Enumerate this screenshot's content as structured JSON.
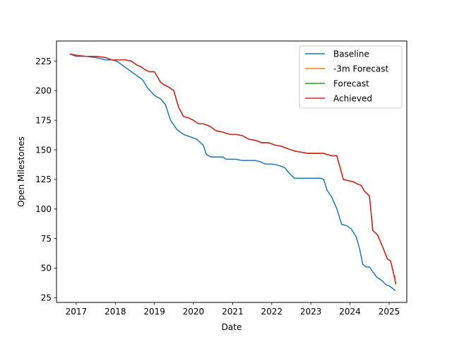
{
  "chart_data": {
    "type": "line",
    "title": "",
    "xlabel": "Date",
    "ylabel": "Open Milestones",
    "xlim": [
      "2016-07-01",
      "2025-06-15"
    ],
    "ylim": [
      21,
      242
    ],
    "x_ticks": [
      "2017",
      "2018",
      "2019",
      "2020",
      "2021",
      "2022",
      "2023",
      "2024",
      "2025"
    ],
    "y_ticks": [
      25,
      50,
      75,
      100,
      125,
      150,
      175,
      200,
      225
    ],
    "legend_position": "top-right",
    "grid": false,
    "series": [
      {
        "name": "Baseline",
        "color": "#1f77b4",
        "x": [
          "2016-11-01",
          "2017-01-01",
          "2017-04-01",
          "2017-07-01",
          "2017-10-01",
          "2017-12-01",
          "2018-01-15",
          "2018-03-01",
          "2018-05-01",
          "2018-07-01",
          "2018-09-15",
          "2018-11-01",
          "2019-01-01",
          "2019-03-01",
          "2019-04-15",
          "2019-06-01",
          "2019-08-01",
          "2019-10-01",
          "2019-12-01",
          "2020-02-01",
          "2020-04-01",
          "2020-05-01",
          "2020-06-15",
          "2020-08-01",
          "2020-10-01",
          "2020-11-01",
          "2020-12-15",
          "2021-02-01",
          "2021-04-01",
          "2021-06-01",
          "2021-08-01",
          "2021-09-15",
          "2021-11-01",
          "2022-01-01",
          "2022-03-01",
          "2022-05-01",
          "2022-06-15",
          "2022-08-01",
          "2022-10-01",
          "2022-12-01",
          "2023-02-01",
          "2023-04-01",
          "2023-05-01",
          "2023-06-01",
          "2023-07-15",
          "2023-09-01",
          "2023-10-15",
          "2023-12-01",
          "2024-01-15",
          "2024-03-01",
          "2024-04-01",
          "2024-05-01",
          "2024-06-01",
          "2024-07-01",
          "2024-08-01",
          "2024-09-01",
          "2024-10-01",
          "2024-11-01",
          "2024-12-01",
          "2025-01-01",
          "2025-02-01",
          "2025-03-01"
        ],
        "y": [
          231,
          229,
          229,
          228,
          226,
          226,
          225,
          222,
          218,
          214,
          209,
          202,
          196,
          193,
          188,
          175,
          167,
          163,
          161,
          159,
          154,
          146,
          144,
          144,
          144,
          142,
          142,
          142,
          141,
          141,
          141,
          140,
          138,
          138,
          137,
          135,
          130,
          126,
          126,
          126,
          126,
          126,
          125,
          116,
          110,
          100,
          87,
          86,
          83,
          76,
          66,
          53,
          51,
          51,
          47,
          43,
          41,
          39,
          36,
          35,
          33,
          31
        ],
        "values": [
          231,
          229,
          229,
          228,
          226,
          226,
          225,
          222,
          218,
          214,
          209,
          202,
          196,
          193,
          188,
          175,
          167,
          163,
          161,
          159,
          154,
          146,
          144,
          144,
          144,
          142,
          142,
          142,
          141,
          141,
          141,
          140,
          138,
          138,
          137,
          135,
          130,
          126,
          126,
          126,
          126,
          126,
          125,
          116,
          110,
          100,
          87,
          86,
          83,
          76,
          66,
          53,
          51,
          51,
          47,
          43,
          41,
          39,
          36,
          35,
          33,
          31
        ]
      },
      {
        "name": "-3m Forecast",
        "color": "#ff7f0e",
        "x": [
          "2016-11-01",
          "2017-01-01",
          "2017-04-01",
          "2017-07-01",
          "2017-10-01",
          "2017-12-01",
          "2018-01-01",
          "2018-02-15",
          "2018-04-01",
          "2018-06-01",
          "2018-07-15",
          "2018-09-01",
          "2018-10-01",
          "2018-11-15",
          "2019-01-01",
          "2019-03-01",
          "2019-04-01",
          "2019-05-15",
          "2019-07-01",
          "2019-08-15",
          "2019-10-01",
          "2019-11-15",
          "2020-01-01",
          "2020-02-15",
          "2020-04-01",
          "2020-06-01",
          "2020-08-01",
          "2020-10-01",
          "2020-11-01",
          "2020-12-15",
          "2021-02-01",
          "2021-04-01",
          "2021-06-01",
          "2021-08-01",
          "2021-10-01",
          "2021-12-01",
          "2022-02-01",
          "2022-04-01",
          "2022-06-01",
          "2022-08-01",
          "2022-10-01",
          "2022-12-01",
          "2023-02-01",
          "2023-04-01",
          "2023-05-01",
          "2023-06-01",
          "2023-07-15",
          "2023-09-01",
          "2023-11-01",
          "2023-12-15",
          "2024-02-01",
          "2024-03-15",
          "2024-04-15",
          "2024-05-15",
          "2024-07-01",
          "2024-08-01",
          "2024-09-15",
          "2024-11-01",
          "2024-12-15",
          "2025-01-15",
          "2025-02-15",
          "2025-03-05"
        ],
        "y": [
          231,
          230,
          229,
          229,
          228,
          226,
          226,
          226,
          226,
          225,
          222,
          220,
          218,
          216,
          216,
          207,
          205,
          203,
          200,
          186,
          178,
          177,
          175,
          172,
          172,
          170,
          166,
          165,
          164,
          163,
          163,
          162,
          159,
          158,
          156,
          156,
          154,
          153,
          151,
          149,
          148,
          147,
          147,
          147,
          147,
          146,
          145,
          145,
          125,
          124,
          123,
          121,
          120,
          115,
          111,
          82,
          78,
          68,
          58,
          56,
          44,
          42
        ]
      },
      {
        "name": "Forecast",
        "color": "#2ca02c",
        "x": [
          "2016-11-01",
          "2017-01-01",
          "2017-04-01",
          "2017-07-01",
          "2017-10-01",
          "2017-12-01",
          "2018-01-01",
          "2018-02-15",
          "2018-04-01",
          "2018-06-01",
          "2018-07-15",
          "2018-09-01",
          "2018-10-01",
          "2018-11-15",
          "2019-01-01",
          "2019-03-01",
          "2019-04-01",
          "2019-05-15",
          "2019-07-01",
          "2019-08-15",
          "2019-10-01",
          "2019-11-15",
          "2020-01-01",
          "2020-02-15",
          "2020-04-01",
          "2020-06-01",
          "2020-08-01",
          "2020-10-01",
          "2020-11-01",
          "2020-12-15",
          "2021-02-01",
          "2021-04-01",
          "2021-06-01",
          "2021-08-01",
          "2021-10-01",
          "2021-12-01",
          "2022-02-01",
          "2022-04-01",
          "2022-06-01",
          "2022-08-01",
          "2022-10-01",
          "2022-12-01",
          "2023-02-01",
          "2023-04-01",
          "2023-05-01",
          "2023-06-01",
          "2023-07-15",
          "2023-09-01",
          "2023-11-01",
          "2023-12-15",
          "2024-02-01",
          "2024-03-15",
          "2024-04-15",
          "2024-05-15",
          "2024-07-01",
          "2024-08-01",
          "2024-09-15",
          "2024-11-01",
          "2024-12-15",
          "2025-01-15",
          "2025-02-15",
          "2025-03-05"
        ],
        "y": [
          231,
          230,
          229,
          229,
          228,
          226,
          226,
          226,
          226,
          225,
          222,
          220,
          218,
          216,
          216,
          207,
          205,
          203,
          200,
          186,
          178,
          177,
          175,
          172,
          172,
          170,
          166,
          165,
          164,
          163,
          163,
          162,
          159,
          158,
          156,
          156,
          154,
          153,
          151,
          149,
          148,
          147,
          147,
          147,
          147,
          146,
          145,
          145,
          125,
          124,
          123,
          121,
          120,
          115,
          111,
          82,
          78,
          68,
          58,
          56,
          44,
          36
        ]
      },
      {
        "name": "Achieved",
        "color": "#d62728",
        "x": [
          "2016-11-01",
          "2017-01-01",
          "2017-04-01",
          "2017-07-01",
          "2017-10-01",
          "2017-12-01",
          "2018-01-01",
          "2018-02-15",
          "2018-04-01",
          "2018-06-01",
          "2018-07-15",
          "2018-09-01",
          "2018-10-01",
          "2018-11-15",
          "2019-01-01",
          "2019-03-01",
          "2019-04-01",
          "2019-05-15",
          "2019-07-01",
          "2019-08-15",
          "2019-10-01",
          "2019-11-15",
          "2020-01-01",
          "2020-02-15",
          "2020-04-01",
          "2020-06-01",
          "2020-08-01",
          "2020-10-01",
          "2020-11-01",
          "2020-12-15",
          "2021-02-01",
          "2021-04-01",
          "2021-06-01",
          "2021-08-01",
          "2021-10-01",
          "2021-12-01",
          "2022-02-01",
          "2022-04-01",
          "2022-06-01",
          "2022-08-01",
          "2022-10-01",
          "2022-12-01",
          "2023-02-01",
          "2023-04-01",
          "2023-05-01",
          "2023-06-01",
          "2023-07-15",
          "2023-09-01",
          "2023-11-01",
          "2023-12-15",
          "2024-02-01",
          "2024-03-15",
          "2024-04-15",
          "2024-05-15",
          "2024-07-01",
          "2024-08-01",
          "2024-09-15",
          "2024-11-01",
          "2024-12-15",
          "2025-01-15",
          "2025-02-15",
          "2025-03-05"
        ],
        "y": [
          231,
          230,
          229,
          229,
          228,
          226,
          226,
          226,
          226,
          225,
          222,
          220,
          218,
          216,
          216,
          207,
          205,
          203,
          200,
          186,
          178,
          177,
          175,
          172,
          172,
          170,
          166,
          165,
          164,
          163,
          163,
          162,
          159,
          158,
          156,
          156,
          154,
          153,
          151,
          149,
          148,
          147,
          147,
          147,
          147,
          146,
          145,
          145,
          125,
          124,
          123,
          121,
          120,
          115,
          111,
          82,
          78,
          68,
          58,
          56,
          44,
          37
        ]
      }
    ]
  }
}
